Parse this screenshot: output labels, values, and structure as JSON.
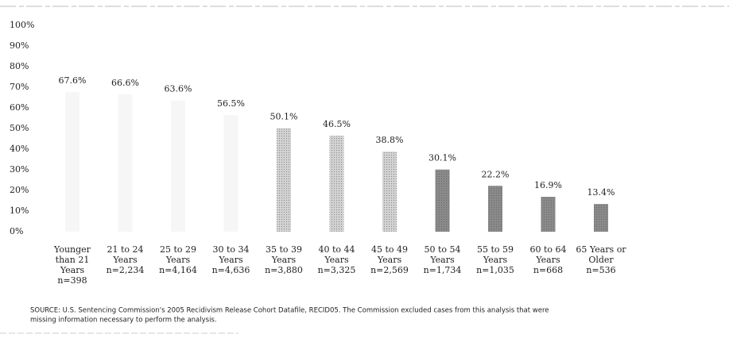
{
  "chart_data": {
    "type": "bar",
    "categories": [
      "Younger than 21 Years",
      "21 to 24 Years",
      "25 to 29 Years",
      "30 to 34 Years",
      "35 to 39 Years",
      "40 to 44 Years",
      "45 to 49 Years",
      "50 to 54 Years",
      "55 to 59 Years",
      "60 to 64 Years",
      "65 Years or Older"
    ],
    "sample_sizes": [
      "n=398",
      "n=2,234",
      "n=4,164",
      "n=4,636",
      "n=3,880",
      "n=3,325",
      "n=2,569",
      "n=1,734",
      "n=1,035",
      "n=668",
      "n=536"
    ],
    "values": [
      67.6,
      66.6,
      63.6,
      56.5,
      50.1,
      46.5,
      38.8,
      30.1,
      22.2,
      16.9,
      13.4
    ],
    "value_labels": [
      "67.6%",
      "66.6%",
      "63.6%",
      "56.5%",
      "50.1%",
      "46.5%",
      "38.8%",
      "30.1%",
      "22.2%",
      "16.9%",
      "13.4%"
    ],
    "colors": [
      "#f6f6f6",
      "#f6f6f6",
      "#f6f6f6",
      "#f6f6f6",
      "#d2d2d2",
      "#d2d2d2",
      "#d2d2d2",
      "#8a8a8a",
      "#8a8a8a",
      "#8a8a8a",
      "#8a8a8a"
    ],
    "ylim": [
      0,
      100
    ],
    "yticks": [
      {
        "value": 0,
        "label": "0%"
      },
      {
        "value": 10,
        "label": "10%"
      },
      {
        "value": 20,
        "label": "20%"
      },
      {
        "value": 30,
        "label": "30%"
      },
      {
        "value": 40,
        "label": "40%"
      },
      {
        "value": 50,
        "label": "50%"
      },
      {
        "value": 60,
        "label": "60%"
      },
      {
        "value": 70,
        "label": "70%"
      },
      {
        "value": 80,
        "label": "80%"
      },
      {
        "value": 90,
        "label": "90%"
      },
      {
        "value": 100,
        "label": "100%"
      }
    ],
    "grid": false,
    "source": [
      "SOURCE: U.S. Sentencing Commission's 2005 Recidivism Release Cohort Datafile, RECID05. The Commission excluded cases from this analysis that were",
      "missing information necessary to perform the analysis."
    ]
  }
}
